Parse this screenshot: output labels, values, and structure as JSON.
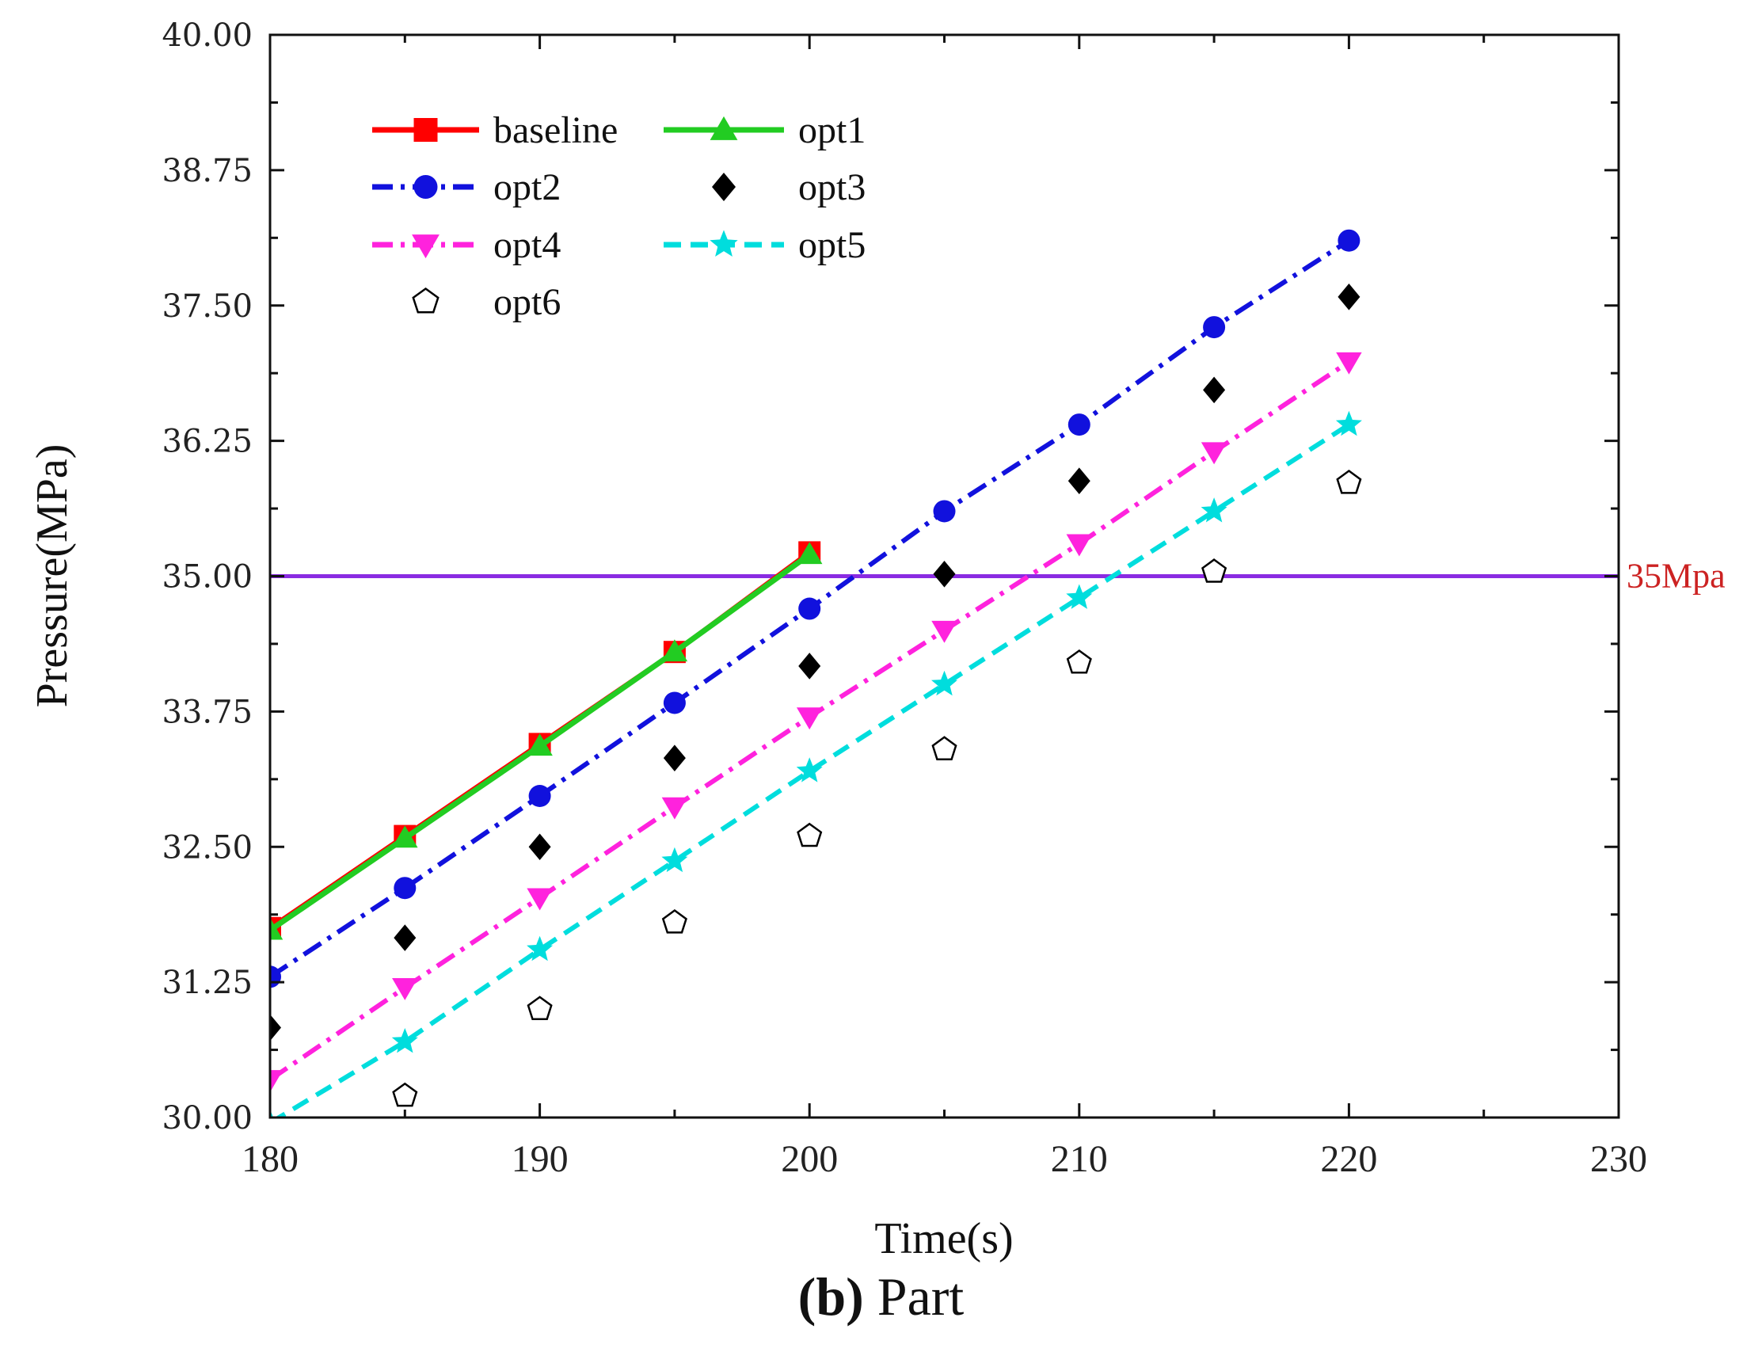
{
  "chart_data": {
    "type": "line",
    "title": "",
    "xlabel": "Time(s)",
    "ylabel": "Pressure(MPa)",
    "xlim": [
      180,
      230
    ],
    "ylim": [
      30.0,
      40.0
    ],
    "x_ticks": [
      180,
      190,
      200,
      210,
      220,
      230
    ],
    "y_ticks": [
      "30.00",
      "31.25",
      "32.50",
      "33.75",
      "35.00",
      "36.25",
      "37.50",
      "38.75",
      "40.00"
    ],
    "grid": false,
    "legend_position": "top-left",
    "reference_line": {
      "value": 35.0,
      "label": "35Mpa",
      "color": "#8a2be2",
      "label_color": "#cc2222"
    },
    "series": [
      {
        "name": "baseline",
        "color": "#ff0000",
        "marker": "square",
        "line": "solid",
        "x": [
          180,
          185,
          190,
          195,
          200
        ],
        "y": [
          31.75,
          32.6,
          33.45,
          34.3,
          35.22
        ]
      },
      {
        "name": "opt1",
        "color": "#22cc22",
        "marker": "triangle-up",
        "line": "solid",
        "x": [
          180,
          185,
          190,
          195,
          200
        ],
        "y": [
          31.73,
          32.58,
          33.43,
          34.3,
          35.2
        ]
      },
      {
        "name": "opt2",
        "color": "#1111dd",
        "marker": "circle",
        "line": "dashdot",
        "x": [
          180,
          185,
          190,
          195,
          200,
          205,
          210,
          215,
          220
        ],
        "y": [
          31.3,
          32.12,
          32.97,
          33.83,
          34.7,
          35.6,
          36.4,
          37.3,
          38.1
        ]
      },
      {
        "name": "opt3",
        "color": "#000000",
        "marker": "diamond",
        "line": "none",
        "x": [
          180,
          185,
          190,
          195,
          200,
          205,
          210,
          215,
          220
        ],
        "y": [
          30.83,
          31.66,
          32.5,
          33.32,
          34.17,
          35.02,
          35.88,
          36.72,
          37.58
        ]
      },
      {
        "name": "opt4",
        "color": "#ff22dd",
        "marker": "triangle-down",
        "line": "dashdot",
        "x": [
          180,
          185,
          190,
          195,
          200,
          205,
          210,
          215,
          220
        ],
        "y": [
          30.35,
          31.2,
          32.03,
          32.87,
          33.7,
          34.5,
          35.3,
          36.15,
          36.98
        ]
      },
      {
        "name": "opt5",
        "color": "#00dddd",
        "marker": "star",
        "line": "dashed",
        "x": [
          180,
          185,
          190,
          195,
          200,
          205,
          210,
          215,
          220
        ],
        "y": [
          29.95,
          30.7,
          31.55,
          32.37,
          33.2,
          34.0,
          34.8,
          35.6,
          36.4
        ]
      },
      {
        "name": "opt6",
        "color": "#000000",
        "marker": "pentagon-open",
        "line": "none",
        "x": [
          185,
          190,
          195,
          200,
          205,
          210,
          215,
          220
        ],
        "y": [
          30.2,
          31.0,
          31.8,
          32.6,
          33.4,
          34.2,
          35.04,
          35.86
        ]
      }
    ]
  },
  "caption": {
    "letter": "(b)",
    "text": " Part"
  }
}
